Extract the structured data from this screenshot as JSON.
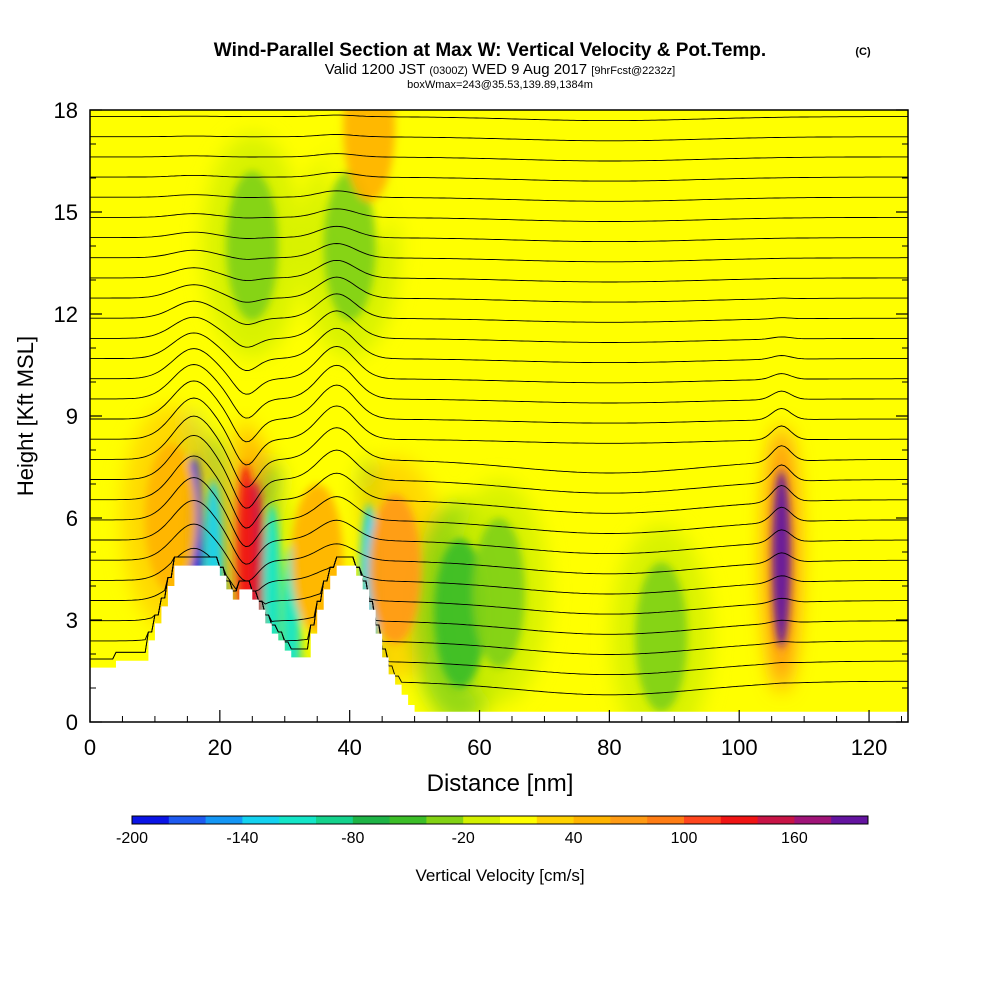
{
  "title": {
    "main": "Wind-Parallel Section at Max W: Vertical Velocity & Pot.Temp.",
    "copyright": "(C)",
    "valid_prefix": "Valid 1200 JST",
    "valid_utc": "(0300Z)",
    "valid_date": "WED 9 Aug 2017",
    "forecast": "[9hrFcst@2232z]",
    "box": "boxWmax=243@35.53,139.89,1384m"
  },
  "chart_data": {
    "type": "heatmap",
    "subtype": "vertical cross-section with isentrope contours",
    "xlabel": "Distance [nm]",
    "ylabel": "Height [Kft MSL]",
    "xlim": [
      0,
      126
    ],
    "ylim": [
      0,
      18
    ],
    "x_ticks": [
      "0",
      "20",
      "40",
      "60",
      "80",
      "100",
      "120"
    ],
    "y_ticks": [
      "0",
      "3",
      "6",
      "9",
      "12",
      "15",
      "18"
    ],
    "colorbar": {
      "label": "Vertical Velocity [cm/s]",
      "min": -200,
      "max": 200,
      "step": 20,
      "tick_labels": [
        "-200",
        "-140",
        "-80",
        "-20",
        "40",
        "100",
        "160"
      ],
      "colors": [
        "#0a14e6",
        "#1e5af0",
        "#1496f5",
        "#14d2f0",
        "#14e6c8",
        "#14d28c",
        "#1eb446",
        "#3cbe28",
        "#82d214",
        "#d2f000",
        "#ffff00",
        "#ffd200",
        "#ffb400",
        "#ff9b14",
        "#ff7d14",
        "#ff461e",
        "#f01414",
        "#c81446",
        "#a01478",
        "#6414a0"
      ]
    },
    "terrain_top_kft": [
      [
        0,
        1.6
      ],
      [
        4,
        1.6
      ],
      [
        4,
        1.8
      ],
      [
        9,
        1.8
      ],
      [
        9,
        2.4
      ],
      [
        10,
        2.4
      ],
      [
        10,
        2.9
      ],
      [
        11,
        2.9
      ],
      [
        11,
        3.4
      ],
      [
        12,
        3.4
      ],
      [
        12,
        4
      ],
      [
        13,
        4
      ],
      [
        13,
        4.6
      ],
      [
        20,
        4.6
      ],
      [
        20,
        4.3
      ],
      [
        21,
        4.3
      ],
      [
        21,
        3.9
      ],
      [
        22,
        3.9
      ],
      [
        22,
        3.6
      ],
      [
        23,
        3.6
      ],
      [
        23,
        3.9
      ],
      [
        25,
        3.9
      ],
      [
        25,
        3.6
      ],
      [
        26,
        3.6
      ],
      [
        26,
        3.3
      ],
      [
        27,
        3.3
      ],
      [
        27,
        2.9
      ],
      [
        28,
        2.9
      ],
      [
        28,
        2.6
      ],
      [
        29,
        2.6
      ],
      [
        29,
        2.4
      ],
      [
        30,
        2.4
      ],
      [
        30,
        2.1
      ],
      [
        31,
        2.1
      ],
      [
        31,
        1.9
      ],
      [
        34,
        1.9
      ],
      [
        34,
        2.6
      ],
      [
        35,
        2.6
      ],
      [
        35,
        3.3
      ],
      [
        36,
        3.3
      ],
      [
        36,
        3.9
      ],
      [
        37,
        3.9
      ],
      [
        37,
        4.3
      ],
      [
        38,
        4.3
      ],
      [
        38,
        4.6
      ],
      [
        41,
        4.6
      ],
      [
        41,
        4.3
      ],
      [
        42,
        4.3
      ],
      [
        42,
        3.9
      ],
      [
        43,
        3.9
      ],
      [
        43,
        3.3
      ],
      [
        44,
        3.3
      ],
      [
        44,
        2.6
      ],
      [
        45,
        2.6
      ],
      [
        45,
        1.9
      ],
      [
        46,
        1.9
      ],
      [
        46,
        1.4
      ],
      [
        47,
        1.4
      ],
      [
        47,
        1.1
      ],
      [
        48,
        1.1
      ],
      [
        48,
        0.8
      ],
      [
        49,
        0.8
      ],
      [
        49,
        0.5
      ],
      [
        50,
        0.5
      ],
      [
        50,
        0.3
      ],
      [
        126,
        0.3
      ]
    ],
    "vertical_velocity_features_cm_s": [
      {
        "x": 16,
        "z": 5.2,
        "w": -200
      },
      {
        "x": 19,
        "z": 4.5,
        "w": -140
      },
      {
        "x": 25.5,
        "z": 4.5,
        "w": 140
      },
      {
        "x": 24,
        "z": 5.0,
        "w": 120
      },
      {
        "x": 12.5,
        "z": 6,
        "w": 50
      },
      {
        "x": 28,
        "z": 3.8,
        "w": -120
      },
      {
        "x": 31,
        "z": 2.6,
        "w": -110
      },
      {
        "x": 43,
        "z": 3.8,
        "w": -130
      },
      {
        "x": 47,
        "z": 4.5,
        "w": 60
      },
      {
        "x": 35,
        "z": 4.8,
        "w": 40
      },
      {
        "x": 57,
        "z": 3.2,
        "w": -50
      },
      {
        "x": 63,
        "z": 3.8,
        "w": -30
      },
      {
        "x": 88,
        "z": 2.5,
        "w": -30
      },
      {
        "x": 106.5,
        "z": 4.8,
        "w": 180
      },
      {
        "x": 25,
        "z": 14,
        "w": -30
      },
      {
        "x": 40,
        "z": 14,
        "w": -30
      },
      {
        "x": 43,
        "z": 17.5,
        "w": 40
      }
    ],
    "isentropes": {
      "label": "Pot.Temp.",
      "levels_k": [
        300,
        302,
        304,
        306,
        308,
        310,
        312,
        314,
        316,
        318,
        320,
        322,
        324,
        326,
        328,
        330,
        332,
        334,
        336,
        338,
        340,
        342,
        344,
        346,
        348,
        350,
        352,
        354,
        356,
        358
      ]
    }
  }
}
